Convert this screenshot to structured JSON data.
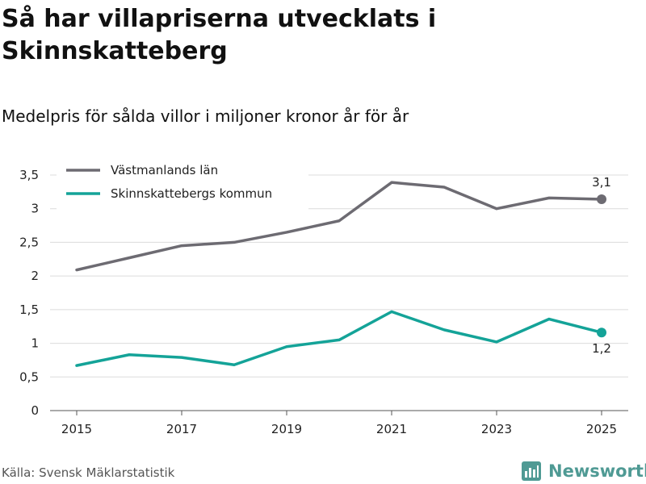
{
  "header": {
    "title": "Så har villapriserna utvecklats i Skinnskatteberg",
    "subtitle": "Medelpris för sålda villor i miljoner kronor år för år"
  },
  "footer": {
    "source": "Källa: Svensk Mäklarstatistik",
    "brand": "Newsworthy"
  },
  "colors": {
    "vastmanland": "#6d6b72",
    "skinnskatteberg": "#14a398",
    "grid": "#dcdcdc",
    "brand": "#4f9a94"
  },
  "chart_data": {
    "type": "line",
    "title": "Så har villapriserna utvecklats i Skinnskatteberg",
    "subtitle": "Medelpris för sålda villor i miljoner kronor år för år",
    "xlabel": "",
    "ylabel": "",
    "x": [
      2015,
      2016,
      2017,
      2018,
      2019,
      2020,
      2021,
      2022,
      2023,
      2024,
      2025
    ],
    "x_tick_labels": [
      "2015",
      "2017",
      "2019",
      "2021",
      "2023",
      "2025"
    ],
    "x_tick_values": [
      2015,
      2017,
      2019,
      2021,
      2023,
      2025
    ],
    "y_tick_labels": [
      "0",
      "0,5",
      "1",
      "1,5",
      "2",
      "2,5",
      "3",
      "3,5"
    ],
    "y_tick_values": [
      0,
      0.5,
      1,
      1.5,
      2,
      2.5,
      3,
      3.5
    ],
    "ylim": [
      0,
      3.5
    ],
    "grid": "horizontal",
    "legend_position": "top-left",
    "series": [
      {
        "name": "Västmanlands län",
        "color": "#6d6b72",
        "values": [
          2.09,
          2.27,
          2.45,
          2.5,
          2.65,
          2.82,
          3.39,
          3.32,
          3.0,
          3.16,
          3.14
        ],
        "end_label": "3,1",
        "end_label_position": "above"
      },
      {
        "name": "Skinnskattebergs kommun",
        "color": "#14a398",
        "values": [
          0.67,
          0.83,
          0.79,
          0.68,
          0.95,
          1.05,
          1.47,
          1.2,
          1.02,
          1.36,
          1.16
        ],
        "end_label": "1,2",
        "end_label_position": "below"
      }
    ]
  }
}
